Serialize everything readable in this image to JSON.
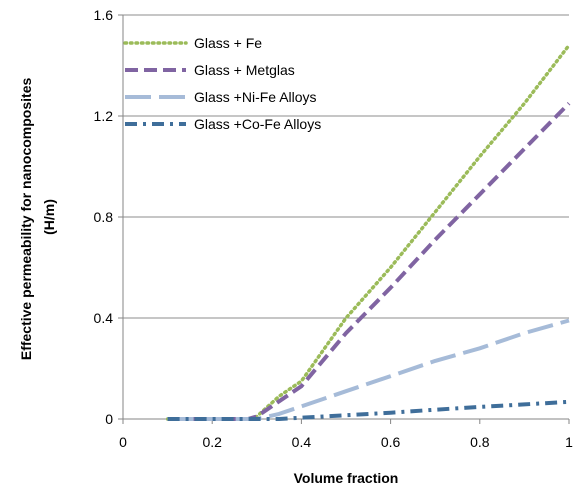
{
  "chart_data": {
    "type": "line",
    "title": "",
    "xlabel": "Volume fraction",
    "ylabel_lines": [
      "Effective permeability for nanocomposites",
      "(H/m)"
    ],
    "xlim": [
      0,
      1
    ],
    "ylim": [
      0,
      1.6
    ],
    "x_ticks": [
      0,
      0.2,
      0.4,
      0.6,
      0.8,
      1
    ],
    "x_tick_labels": [
      "0",
      "0.2",
      "0.4",
      "0.6",
      "0.8",
      "1"
    ],
    "y_ticks": [
      0,
      0.4,
      0.8,
      1.2,
      1.6
    ],
    "y_tick_labels": [
      "0",
      "0.4",
      "0.8",
      "1.2",
      "1.6"
    ],
    "grid": "horizontal",
    "legend_position": "top-left",
    "series": [
      {
        "name": "Glass + Fe",
        "color": "#9BBB59",
        "style": "dotted",
        "x": [
          0.1,
          0.2,
          0.28,
          0.3,
          0.35,
          0.4,
          0.5,
          0.6,
          0.7,
          0.8,
          0.9,
          1.0
        ],
        "y": [
          0,
          0,
          0,
          0.01,
          0.09,
          0.15,
          0.4,
          0.6,
          0.82,
          1.04,
          1.25,
          1.48
        ]
      },
      {
        "name": "Glass + Metglas",
        "color": "#8064A2",
        "style": "dashed",
        "x": [
          0.1,
          0.2,
          0.28,
          0.3,
          0.35,
          0.4,
          0.5,
          0.6,
          0.7,
          0.8,
          0.9,
          1.0
        ],
        "y": [
          0,
          0,
          0,
          0.01,
          0.07,
          0.13,
          0.34,
          0.52,
          0.71,
          0.89,
          1.07,
          1.25
        ]
      },
      {
        "name": "Glass +Ni-Fe Alloys",
        "color": "#A6BBD8",
        "style": "longdash",
        "x": [
          0.1,
          0.2,
          0.3,
          0.35,
          0.4,
          0.5,
          0.6,
          0.7,
          0.8,
          0.9,
          1.0
        ],
        "y": [
          0,
          0,
          0,
          0.02,
          0.05,
          0.11,
          0.17,
          0.23,
          0.28,
          0.34,
          0.39
        ]
      },
      {
        "name": "Glass +Co-Fe Alloys",
        "color": "#3F6E9A",
        "style": "dashdot",
        "x": [
          0.1,
          0.2,
          0.3,
          0.35,
          0.4,
          0.5,
          0.6,
          0.7,
          0.8,
          0.9,
          1.0
        ],
        "y": [
          0,
          0,
          0,
          0,
          0.005,
          0.015,
          0.025,
          0.037,
          0.048,
          0.058,
          0.068
        ]
      }
    ]
  }
}
